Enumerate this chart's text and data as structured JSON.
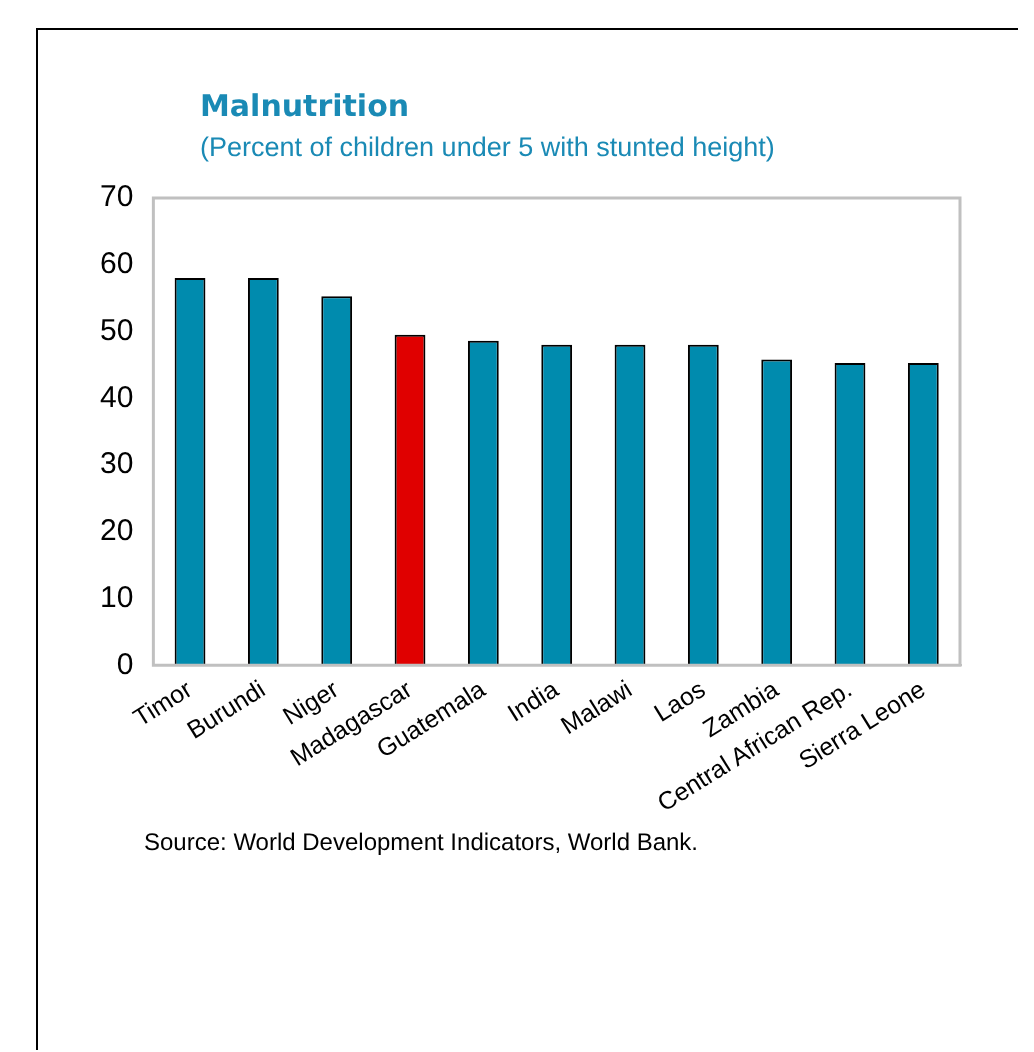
{
  "chart_data": {
    "type": "bar",
    "title": "Malnutrition",
    "subtitle": "(Percent of children under 5 with stunted height)",
    "categories": [
      "Timor",
      "Burundi",
      "Niger",
      "Madagascar",
      "Guatemala",
      "India",
      "Malawi",
      "Laos",
      "Zambia",
      "Central African Rep.",
      "Sierra Leone"
    ],
    "values": [
      58.0,
      58.0,
      55.3,
      49.5,
      48.6,
      48.0,
      48.0,
      48.0,
      45.8,
      45.3,
      45.3
    ],
    "colors": [
      "#008bae",
      "#008bae",
      "#008bae",
      "#e00000",
      "#008bae",
      "#008bae",
      "#008bae",
      "#008bae",
      "#008bae",
      "#008bae",
      "#008bae"
    ],
    "ylim": [
      0,
      70
    ],
    "yticks": [
      0,
      10,
      20,
      30,
      40,
      50,
      60,
      70
    ],
    "grid": false,
    "annotations": [
      "Source: World Development Indicators,  World Bank."
    ]
  }
}
